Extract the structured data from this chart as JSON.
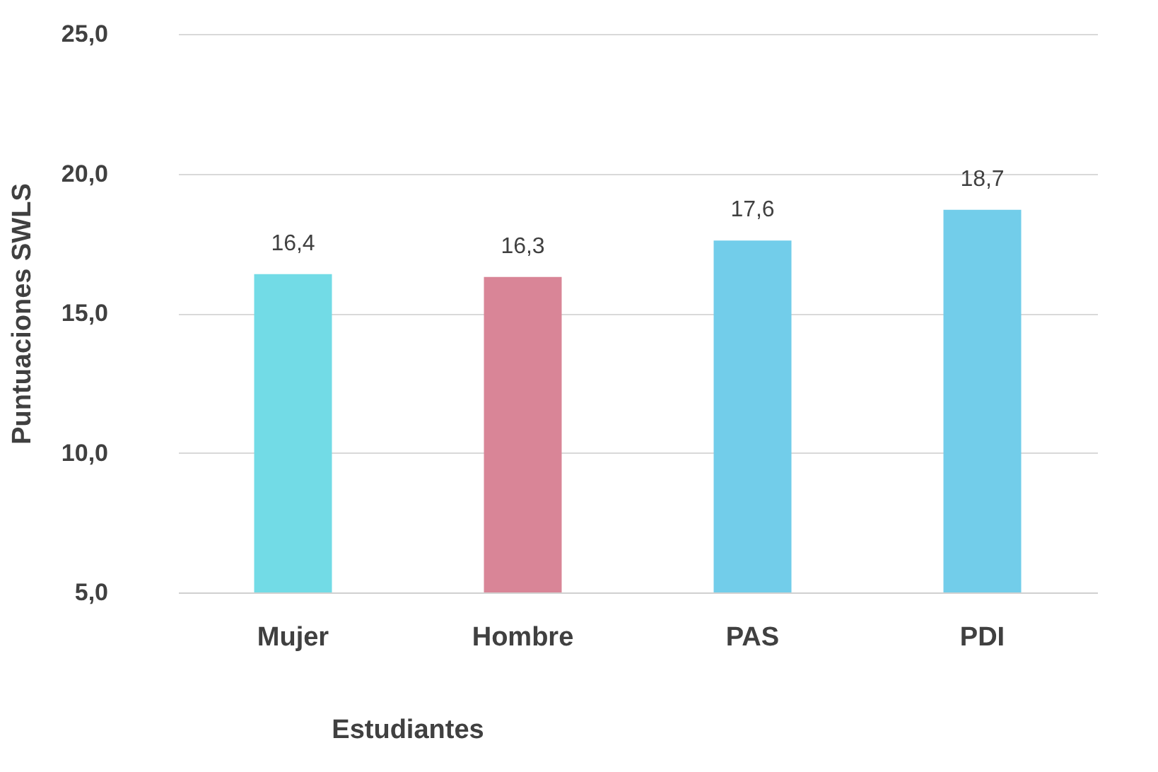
{
  "chart_data": {
    "type": "bar",
    "ylabel": "Puntuaciones SWLS",
    "categories": [
      "Mujer",
      "Hombre",
      "PAS",
      "PDI"
    ],
    "values": [
      16.4,
      16.3,
      17.6,
      18.7
    ],
    "colors": [
      "#72dbe6",
      "#d98597",
      "#72cdea",
      "#72cdea"
    ],
    "value_labels": [
      "16,4",
      "16,3",
      "17,6",
      "18,7"
    ],
    "ylim": [
      5,
      25
    ],
    "yticks": [
      {
        "value": 5,
        "label": "5,0"
      },
      {
        "value": 10,
        "label": "10,0"
      },
      {
        "value": 15,
        "label": "15,0"
      },
      {
        "value": 20,
        "label": "20,0"
      },
      {
        "value": 25,
        "label": "25,0"
      }
    ],
    "grid": "y",
    "annotations": [
      "Estudiantes"
    ]
  }
}
